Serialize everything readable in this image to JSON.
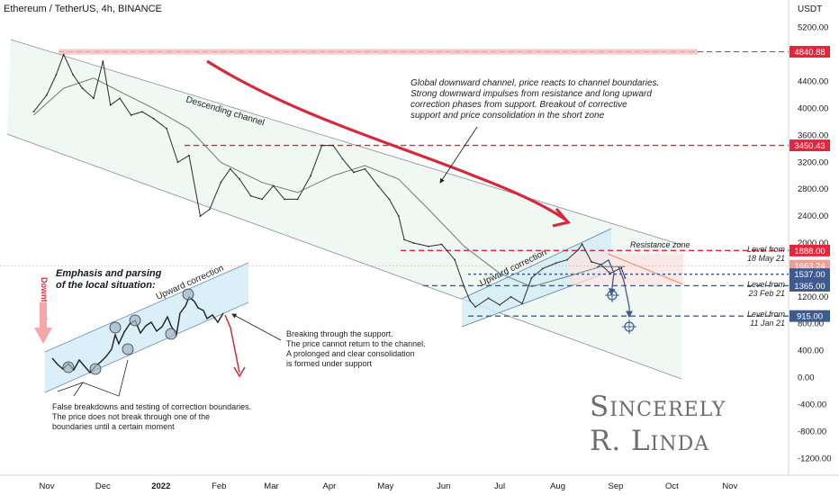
{
  "header": {
    "title": "Ethereum / TetherUS, 4h, BINANCE"
  },
  "price_axis": {
    "currency": "USDT"
  },
  "colors": {
    "resistance": "#e8243a",
    "support": "#3f5b8e",
    "channel_fill": "#e3f2ea",
    "upward_fill": "#d3ecf6",
    "arrow_red": "#d42a3c",
    "ma": "#6b7f6e",
    "price": "#2a2a2a"
  },
  "chart_data": {
    "type": "line",
    "title": "Ethereum / TetherUS, 4h, BINANCE",
    "ylabel": "USDT",
    "ylim": [
      -1450,
      5450
    ],
    "yticks": [
      "5200.00",
      "4800.00",
      "4400.00",
      "4000.00",
      "3600.00",
      "3200.00",
      "2800.00",
      "2400.00",
      "2000.00",
      "1600.00",
      "1200.00",
      "800.00",
      "400.00",
      "0.00",
      "-400.00",
      "-800.00",
      "-1200.00"
    ],
    "xticks": [
      "Nov",
      "Dec",
      "2022",
      "Feb",
      "Mar",
      "Apr",
      "May",
      "Jun",
      "Jul",
      "Aug",
      "Sep",
      "Oct",
      "Nov"
    ],
    "series": [
      {
        "x": [
          "2021-10-25",
          "2021-11-01",
          "2021-11-06",
          "2021-11-10",
          "2021-11-15",
          "2021-11-20",
          "2021-11-26",
          "2021-12-01",
          "2021-12-05",
          "2021-12-10",
          "2021-12-16",
          "2021-12-22",
          "2021-12-28",
          "2022-01-04",
          "2022-01-10",
          "2022-01-16",
          "2022-01-22",
          "2022-01-27",
          "2022-02-02",
          "2022-02-07",
          "2022-02-12",
          "2022-02-18",
          "2022-02-24",
          "2022-03-02",
          "2022-03-08",
          "2022-03-15",
          "2022-03-22",
          "2022-03-28",
          "2022-04-03",
          "2022-04-08",
          "2022-04-14",
          "2022-04-20",
          "2022-04-27",
          "2022-05-03",
          "2022-05-08",
          "2022-05-11",
          "2022-05-16",
          "2022-05-24",
          "2022-05-31",
          "2022-06-07",
          "2022-06-12",
          "2022-06-15",
          "2022-06-18",
          "2022-06-25",
          "2022-07-01",
          "2022-07-07",
          "2022-07-13",
          "2022-07-18",
          "2022-07-24",
          "2022-07-31",
          "2022-08-06",
          "2022-08-12",
          "2022-08-14",
          "2022-08-19",
          "2022-08-24",
          "2022-08-29",
          "2022-09-04",
          "2022-09-06"
        ],
        "values": [
          3950,
          4200,
          4500,
          4800,
          4500,
          4300,
          4150,
          4700,
          4050,
          4150,
          3900,
          3950,
          3850,
          3700,
          3200,
          3300,
          2400,
          2500,
          2900,
          3100,
          2950,
          2700,
          2650,
          2850,
          2650,
          2650,
          3000,
          3450,
          3450,
          3250,
          3050,
          3100,
          2850,
          2650,
          2400,
          2050,
          2000,
          1950,
          1980,
          1750,
          1350,
          1150,
          1050,
          1180,
          1080,
          1200,
          1100,
          1480,
          1620,
          1700,
          1750,
          1900,
          1985,
          1720,
          1680,
          1550,
          1630,
          1480
        ]
      }
    ],
    "ma_series": {
      "x": [
        "2021-10-25",
        "2021-11-10",
        "2021-11-26",
        "2021-12-10",
        "2021-12-28",
        "2022-01-16",
        "2022-02-02",
        "2022-02-24",
        "2022-03-15",
        "2022-04-03",
        "2022-04-20",
        "2022-05-08",
        "2022-05-24",
        "2022-06-12",
        "2022-07-01",
        "2022-07-18",
        "2022-08-06",
        "2022-08-24",
        "2022-09-06"
      ],
      "values": [
        3900,
        4300,
        4450,
        4250,
        4000,
        3700,
        3200,
        2900,
        2750,
        3000,
        3150,
        2950,
        2500,
        1950,
        1550,
        1350,
        1500,
        1650,
        1650
      ]
    },
    "levels": [
      {
        "label": "4840.88",
        "value": 4840.88,
        "color": "#e8243a"
      },
      {
        "label": "3450.43",
        "value": 3450.43,
        "color": "#e8243a"
      },
      {
        "label": "1888.00",
        "value": 1888,
        "color": "#e8243a"
      },
      {
        "label": "1663.24",
        "value": 1663.24,
        "color": "#f29c95"
      },
      {
        "label": "1537.00",
        "value": 1537,
        "color": "#3f5b8e"
      },
      {
        "label": "1365.00",
        "value": 1365,
        "color": "#3f5b8e"
      },
      {
        "label": "915.00",
        "value": 915,
        "color": "#3f5b8e"
      }
    ]
  },
  "annotations": {
    "descending_channel": "Descending channel",
    "upward_correction_main": "Upward correction",
    "upward_correction_inset": "Upward correction",
    "resistance_zone": "Resistance zone",
    "level_18may_1": "Level from",
    "level_18may_2": "18 May 21",
    "level_23feb_1": "Level from",
    "level_23feb_2": "23 Feb 21",
    "level_11jan_1": "Level from",
    "level_11jan_2": "11 Jan 21",
    "global_note": [
      "Global downward channel, price reacts to channel boundaries.",
      "Strong downward impulses from resistance and long upward",
      "correction phases from support. Breakout of corrective",
      "support and price consolidation in the short zone"
    ],
    "emphasis_title": [
      "Emphasis and parsing",
      "of the local situation:"
    ],
    "downtrend": "Downtrend",
    "breaking_note": [
      "Breaking through the support.",
      "The price cannot return to the channel.",
      "A prolonged and clear consolidation",
      "is formed under support"
    ],
    "false_note": [
      "False breakdowns and testing of correction boundaries.",
      "The price does not break through one of the",
      "boundaries until a certain moment"
    ],
    "signature": [
      "Sincerely",
      "R. Linda"
    ]
  }
}
